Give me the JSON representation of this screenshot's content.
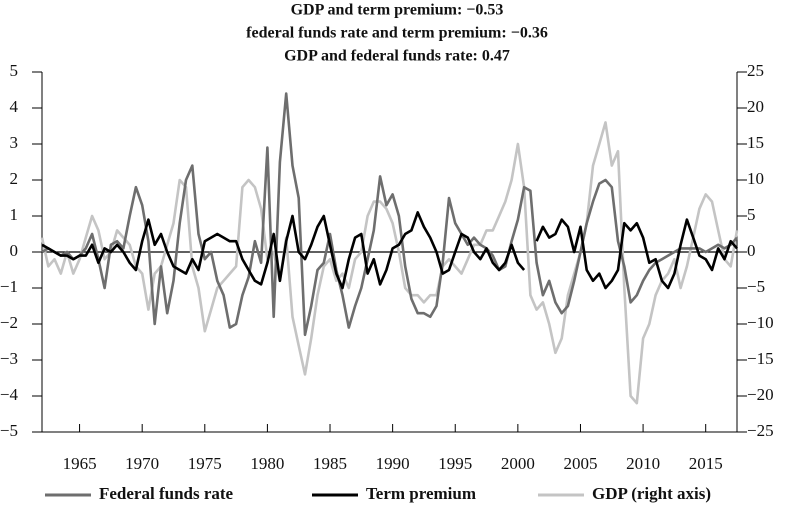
{
  "chart_data": {
    "type": "line",
    "title_lines": [
      "GDP and term premium: −0.53",
      "federal funds rate and term premium: −0.36",
      "GDP and federal funds rate: 0.47"
    ],
    "x": [
      1962,
      1962.5,
      1963,
      1963.5,
      1964,
      1964.5,
      1965,
      1965.5,
      1966,
      1966.5,
      1967,
      1967.5,
      1968,
      1968.5,
      1969,
      1969.5,
      1970,
      1970.5,
      1971,
      1971.5,
      1972,
      1972.5,
      1973,
      1973.5,
      1974,
      1974.5,
      1975,
      1975.5,
      1976,
      1976.5,
      1977,
      1977.5,
      1978,
      1978.5,
      1979,
      1979.5,
      1980,
      1980.5,
      1981,
      1981.5,
      1982,
      1982.5,
      1983,
      1983.5,
      1984,
      1984.5,
      1985,
      1985.5,
      1986,
      1986.5,
      1987,
      1987.5,
      1988,
      1988.5,
      1989,
      1989.5,
      1990,
      1990.5,
      1991,
      1991.5,
      1992,
      1992.5,
      1993,
      1993.5,
      1994,
      1994.5,
      1995,
      1995.5,
      1996,
      1996.5,
      1997,
      1997.5,
      1998,
      1998.5,
      1999,
      1999.5,
      2000,
      2000.5,
      2001,
      2001.5,
      2002,
      2002.5,
      2003,
      2003.5,
      2004,
      2004.5,
      2005,
      2005.5,
      2006,
      2006.5,
      2007,
      2007.5,
      2008,
      2008.5,
      2009,
      2009.5,
      2010,
      2010.5,
      2011,
      2011.5,
      2012,
      2012.5,
      2013,
      2013.5,
      2014,
      2014.5,
      2015,
      2015.5,
      2016,
      2016.5,
      2017,
      2017.5
    ],
    "series": [
      {
        "name": "Federal funds rate",
        "color": "#6e6e6e",
        "axis": "y",
        "values": [
          0,
          0.1,
          0,
          -0.1,
          0,
          -0.2,
          -0.1,
          0.1,
          0.5,
          -0.2,
          -1.0,
          0.2,
          0.3,
          0.1,
          1.0,
          1.8,
          1.3,
          0.3,
          -2.0,
          -0.4,
          -1.7,
          -0.8,
          0.8,
          2.0,
          2.4,
          0.5,
          -0.2,
          0,
          -0.8,
          -1.2,
          -2.1,
          -2.0,
          -1.2,
          -0.7,
          0.3,
          -0.3,
          2.9,
          -1.8,
          2.5,
          4.4,
          2.4,
          1.5,
          -2.3,
          -1.5,
          -0.5,
          -0.3,
          0.5,
          -0.5,
          -1.2,
          -2.1,
          -1.5,
          -1.0,
          -0.2,
          0.6,
          2.1,
          1.3,
          1.6,
          1.0,
          -0.4,
          -1.3,
          -1.7,
          -1.7,
          -1.8,
          -1.5,
          -0.3,
          1.5,
          0.8,
          0.5,
          0.2,
          0.4,
          0.2,
          0.1,
          -0.1,
          -0.5,
          -0.4,
          0.3,
          0.9,
          1.8,
          1.7,
          -0.3,
          -1.2,
          -0.8,
          -1.4,
          -1.7,
          -1.5,
          -0.8,
          0,
          0.8,
          1.4,
          1.9,
          2.0,
          1.8,
          0.3,
          -0.4,
          -1.4,
          -1.2,
          -0.8,
          -0.5,
          -0.3,
          -0.2,
          -0.1,
          0,
          0.1,
          0.1,
          0.1,
          0.1,
          0,
          0.1,
          0.2,
          0.1,
          0.2,
          0.4
        ]
      },
      {
        "name": "Term premium",
        "color": "#000000",
        "axis": "y",
        "values": [
          0.2,
          0.1,
          0,
          -0.1,
          -0.1,
          -0.2,
          -0.1,
          -0.1,
          0.2,
          -0.3,
          0.1,
          0,
          0.2,
          0,
          -0.3,
          -0.5,
          0.3,
          0.9,
          0.2,
          0.5,
          0,
          -0.4,
          -0.5,
          -0.6,
          -0.2,
          -0.5,
          0.3,
          0.4,
          0.5,
          0.4,
          0.3,
          0.3,
          -0.2,
          -0.5,
          -0.8,
          -0.9,
          -0.3,
          0.5,
          -0.8,
          0.3,
          1.0,
          0,
          -0.2,
          0.2,
          0.7,
          1.0,
          0.2,
          -0.6,
          -1.0,
          -0.2,
          0.4,
          0.5,
          -0.6,
          -0.2,
          -0.9,
          -0.5,
          0.1,
          0.2,
          0.5,
          0.6,
          1.1,
          0.7,
          0.4,
          0,
          -0.6,
          -0.5,
          0,
          0.5,
          0.4,
          0,
          -0.2,
          0.1,
          -0.3,
          -0.5,
          -0.3,
          0.2,
          -0.3,
          -0.5,
          null,
          0.3,
          0.7,
          0.4,
          0.5,
          0.9,
          0.7,
          0,
          0.7,
          -0.5,
          -0.8,
          -0.6,
          -1.0,
          -0.8,
          -0.5,
          0.8,
          0.6,
          0.8,
          0.4,
          -0.3,
          -0.2,
          -0.8,
          -1.0,
          -0.6,
          0.2,
          0.9,
          0.4,
          -0.1,
          -0.2,
          -0.5,
          0.1,
          -0.2,
          0.3,
          0.1
        ]
      },
      {
        "name": "GDP (right axis)",
        "color": "#c4c4c4",
        "axis": "y2",
        "values": [
          2,
          -2,
          -1,
          -3,
          0,
          -3,
          -1,
          2,
          5,
          3,
          -1,
          0,
          3,
          2,
          1,
          -2,
          -3,
          -8,
          -3,
          -2,
          1,
          4,
          10,
          9,
          -2,
          -5,
          -11,
          -8,
          -5,
          -4,
          -3,
          -2,
          9,
          10,
          9,
          6,
          -1,
          0,
          -4,
          2,
          -9,
          -13,
          -17,
          -12,
          -6,
          -2,
          -1,
          -4,
          -3,
          -5,
          -1,
          0,
          5,
          7,
          7,
          6,
          4,
          0,
          -5,
          -6,
          -6,
          -7,
          -6,
          -6,
          -2,
          -1,
          -2,
          -3,
          -1,
          1,
          1,
          3,
          3,
          5,
          7,
          10,
          15,
          9,
          -6,
          -8,
          -7,
          -10,
          -14,
          -12,
          -6,
          -3,
          0,
          4,
          12,
          15,
          18,
          12,
          14,
          -5,
          -20,
          -21,
          -12,
          -10,
          -6,
          -4,
          -3,
          -1,
          -5,
          -2,
          2,
          6,
          8,
          7,
          3,
          -1,
          -2,
          3
        ]
      }
    ],
    "xlim": [
      1962,
      2017.5
    ],
    "xticks": [
      1965,
      1970,
      1975,
      1980,
      1985,
      1990,
      1995,
      2000,
      2005,
      2010,
      2015
    ],
    "ylim": [
      -5,
      5
    ],
    "yticks": [
      {
        "value": -5,
        "label": "−5"
      },
      {
        "value": -4,
        "label": "−4"
      },
      {
        "value": -3,
        "label": "−3"
      },
      {
        "value": -2,
        "label": "−2"
      },
      {
        "value": -1,
        "label": "−1"
      },
      0,
      1,
      2,
      3,
      4,
      5
    ],
    "y2lim": [
      -25,
      25
    ],
    "y2ticks": [
      {
        "value": -25,
        "label": "−25"
      },
      {
        "value": -20,
        "label": "−20"
      },
      {
        "value": -15,
        "label": "−15"
      },
      {
        "value": -10,
        "label": "−10"
      },
      {
        "value": -5,
        "label": "−5"
      },
      0,
      5,
      10,
      15,
      20,
      25
    ]
  }
}
